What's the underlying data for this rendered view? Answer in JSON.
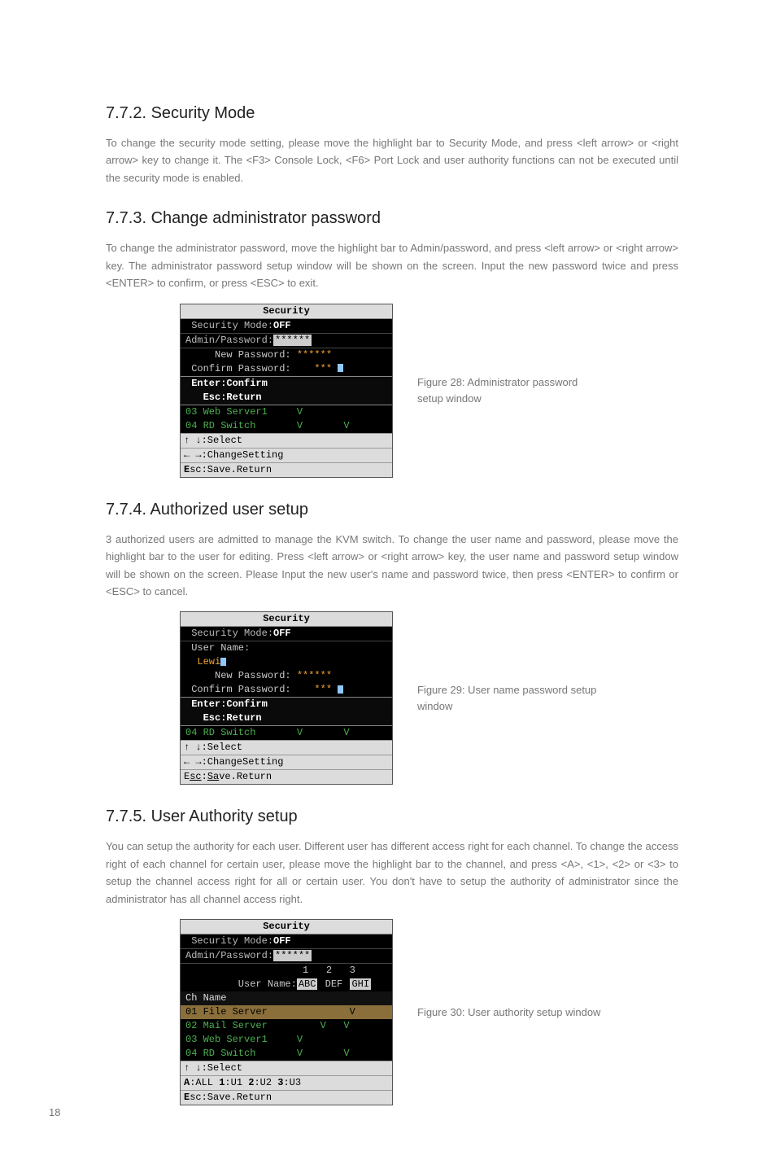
{
  "s1": {
    "title": "7.7.2. Security Mode",
    "para": "To change the security mode setting, please move the highlight bar to Security Mode, and press <left arrow> or <right arrow> key to change it. The <F3> Console Lock, <F6> Port Lock and user authority functions can not be executed until the security mode is enabled."
  },
  "s2": {
    "title": "7.7.3. Change administrator password",
    "para": "To change the administrator password, move the highlight bar to Admin/password, and press <left arrow> or <right arrow> key. The administrator password setup window will be shown on the screen. Input the new password twice and press <ENTER> to confirm, or press <ESC> to exit.",
    "caption": "Figure 28: Administrator password setup window",
    "term": {
      "title": "Security",
      "l1": " Security Mode:",
      "l1b": "OFF",
      "l2": "Admin/Password:",
      "l2b": "******",
      "l3": "     New Password:",
      "l3v": " ******",
      "l4": " Confirm Password:",
      "l4v": "    *** ",
      "box1": " Enter:Confirm",
      "box2": "   Esc:Return",
      "row3": "03 Web Server1     V        ",
      "row4": "04 RD Switch       V       V",
      "f1": "↑ ↓:Select",
      "f2": "← →:ChangeSetting",
      "f3": "Esc:Save.Return"
    }
  },
  "s3": {
    "title": "7.7.4. Authorized user setup",
    "para": "3 authorized users are admitted to manage the KVM switch. To change the user name and password, please move the highlight bar to the user for editing.  Press <left arrow> or <right arrow> key, the user name and password setup window will be shown on the screen. Please Input the new user's name and password twice, then press <ENTER> to confirm or <ESC> to cancel.",
    "caption": "Figure 29: User name password setup window",
    "term": {
      "title": "Security",
      "l1": " Security Mode:",
      "l1b": "OFF",
      "l2": " User Name:",
      "l2v": "  Lewi",
      "l3": "     New Password:",
      "l3v": " ******",
      "l4": " Confirm Password:",
      "l4v": "    *** ",
      "box1": " Enter:Confirm",
      "box2": "   Esc:Return",
      "row4": "04 RD Switch       V       V",
      "f1": "↑ ↓:Select",
      "f2": "← →:ChangeSetting",
      "f3": "Esc:Save.Return"
    }
  },
  "s4": {
    "title": "7.7.5. User Authority setup",
    "para": "You can setup the authority for each user. Different user has different access right for each channel. To change the access right of each channel for certain user, please move the highlight bar to the channel, and press <A>, <1>, <2> or <3> to setup the channel access right for all or certain user. You don't have to setup the authority of administrator since the administrator has all channel access right.",
    "caption": "Figure 30: User authority setup window",
    "term": {
      "title": "Security",
      "l1": " Security Mode:",
      "l1b": "OFF",
      "l2": "Admin/Password:",
      "l2b": "******",
      "head": "                    1   2   3",
      "headu": "         User Name:",
      "u1": "ABC",
      "u2": "DEF",
      "u3": "GHI",
      "ch": "Ch Name",
      "r1": "01 File Server              V",
      "r2": "02 Mail Server         V   V",
      "r3": "03 Web Server1     V        ",
      "r4": "04 RD Switch       V       V",
      "f1": "↑ ↓:Select",
      "f2a": "A",
      "f2b": ":ALL ",
      "f2c": "1",
      "f2d": ":U1 ",
      "f2e": "2",
      "f2f": ":U2 ",
      "f2g": "3",
      "f2h": ":U3",
      "f3": "Esc:Save.Return"
    }
  },
  "page_number": "18"
}
